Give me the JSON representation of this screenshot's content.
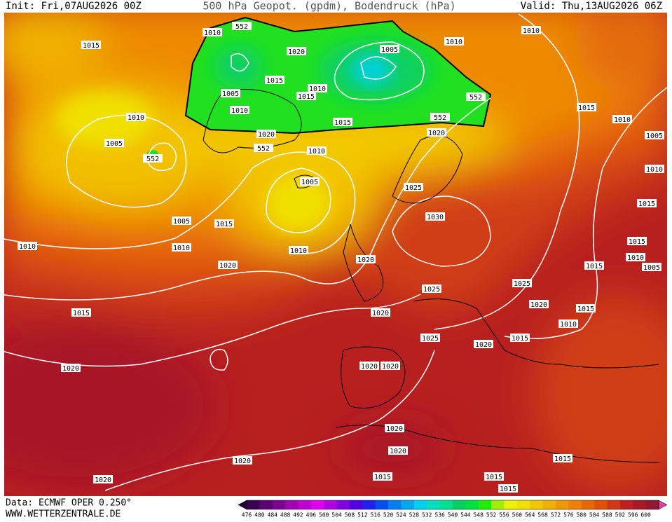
{
  "header": {
    "init": "Init: Fri,07AUG2026 00Z",
    "title": "500 hPa Geopot. (gpdm), Bodendruck (hPa)",
    "valid": "Valid: Thu,13AUG2026 06Z"
  },
  "map": {
    "isobar_labels": [
      1010,
      552,
      1015,
      1020,
      1005,
      1010,
      1010,
      1005,
      1015,
      1015,
      1010,
      552,
      1010,
      1010,
      552,
      1015,
      1020,
      1015,
      1010,
      1005,
      1020,
      552,
      1005,
      552,
      1010,
      1010,
      1005,
      1025,
      1015,
      1005,
      1015,
      1030,
      1015,
      1010,
      1010,
      1010,
      1010,
      1005,
      1020,
      1020,
      1015,
      1025,
      1025,
      1020,
      1015,
      1015,
      1020,
      1010,
      1025,
      1020,
      1015,
      1020,
      1020,
      1020,
      1020,
      1020,
      1020,
      1015,
      1015,
      1015,
      1020,
      1015
    ],
    "colorbar": {
      "labels": [
        476,
        480,
        484,
        488,
        492,
        496,
        500,
        504,
        508,
        512,
        516,
        520,
        524,
        528,
        532,
        536,
        540,
        544,
        548,
        552,
        556,
        560,
        564,
        568,
        572,
        576,
        580,
        584,
        588,
        592,
        596,
        600
      ],
      "colors": [
        "#3a0050",
        "#5a0070",
        "#7a0090",
        "#a000b0",
        "#c000d0",
        "#e000f0",
        "#b000e0",
        "#8000e0",
        "#5000e0",
        "#2020f0",
        "#0050f0",
        "#0080f0",
        "#00a8f0",
        "#00d0f0",
        "#00e0c0",
        "#00e090",
        "#00d060",
        "#00e040",
        "#20f000",
        "#a0f000",
        "#f0f000",
        "#f0e000",
        "#f0c800",
        "#f0b000",
        "#f09800",
        "#f08000",
        "#e86800",
        "#e05000",
        "#d03818",
        "#c02020",
        "#a81828",
        "#901830"
      ]
    }
  },
  "footer": {
    "source": "Data: ECMWF OPER 0.250°",
    "website": "WWW.WETTERZENTRALE.DE"
  }
}
